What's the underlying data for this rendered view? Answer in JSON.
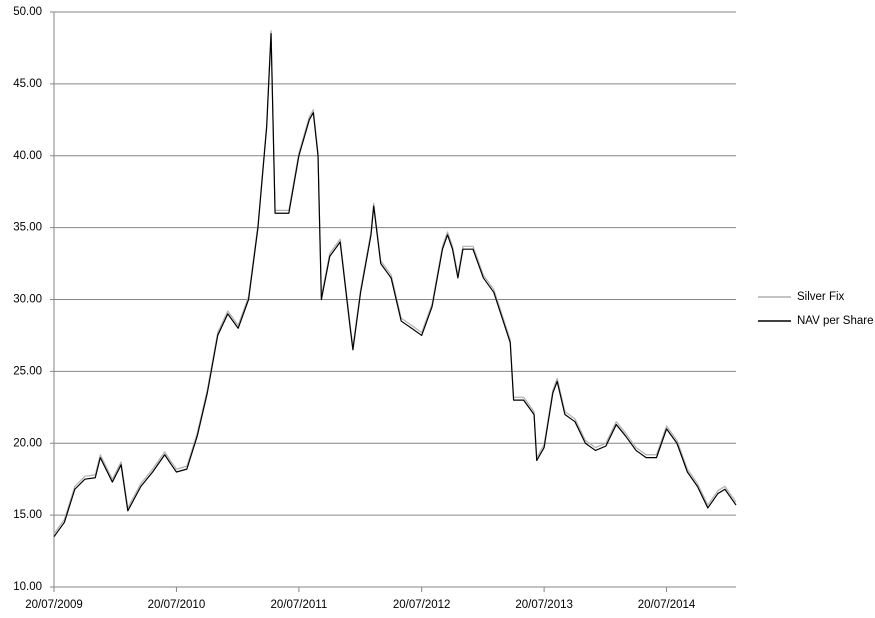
{
  "chart_data": {
    "type": "line",
    "x": [
      "20/07/2009",
      "20/08/2009",
      "20/09/2009",
      "20/10/2009",
      "20/11/2009",
      "05/12/2009",
      "10/01/2010",
      "05/02/2010",
      "25/02/2010",
      "05/04/2010",
      "10/05/2010",
      "15/06/2010",
      "05/07/2010",
      "20/07/2010",
      "20/08/2010",
      "20/09/2010",
      "20/10/2010",
      "20/11/2010",
      "20/12/2010",
      "20/01/2011",
      "20/02/2011",
      "20/03/2011",
      "15/04/2011",
      "28/04/2011",
      "10/05/2011",
      "20/06/2011",
      "20/07/2011",
      "20/08/2011",
      "01/09/2011",
      "15/09/2011",
      "25/09/2011",
      "20/10/2011",
      "20/11/2011",
      "20/12/2011",
      "28/12/2011",
      "20/01/2012",
      "20/02/2012",
      "28/02/2012",
      "20/03/2012",
      "20/04/2012",
      "20/05/2012",
      "20/06/2012",
      "20/07/2012",
      "20/08/2012",
      "20/09/2012",
      "05/10/2012",
      "20/10/2012",
      "05/11/2012",
      "20/11/2012",
      "20/12/2012",
      "20/01/2013",
      "20/02/2013",
      "20/03/2013",
      "10/04/2013",
      "20/04/2013",
      "20/05/2013",
      "20/06/2013",
      "28/06/2013",
      "20/07/2013",
      "15/08/2013",
      "28/08/2013",
      "20/09/2013",
      "20/10/2013",
      "20/11/2013",
      "20/12/2013",
      "20/01/2014",
      "20/02/2014",
      "20/03/2014",
      "20/04/2014",
      "20/05/2014",
      "20/06/2014",
      "20/07/2014",
      "20/08/2014",
      "20/09/2014",
      "20/10/2014",
      "20/11/2014",
      "20/12/2014",
      "10/01/2015",
      "12/02/2015"
    ],
    "series": [
      {
        "name": "Silver Fix",
        "color": "#b0b0b0",
        "values": [
          13.7,
          14.7,
          17.0,
          17.7,
          17.8,
          19.2,
          17.5,
          18.7,
          15.5,
          17.2,
          18.2,
          19.4,
          18.7,
          18.2,
          18.4,
          20.7,
          23.7,
          27.7,
          29.2,
          28.2,
          30.2,
          35.2,
          42.2,
          48.7,
          36.2,
          36.2,
          40.2,
          42.7,
          43.2,
          40.2,
          30.2,
          33.2,
          34.2,
          28.2,
          26.7,
          30.7,
          34.7,
          36.7,
          32.7,
          31.7,
          28.7,
          28.2,
          27.7,
          29.7,
          33.7,
          34.7,
          33.7,
          31.7,
          33.7,
          33.7,
          31.7,
          30.7,
          28.7,
          27.2,
          23.2,
          23.2,
          22.2,
          19.0,
          19.9,
          23.7,
          24.5,
          22.2,
          21.7,
          20.2,
          19.7,
          20.0,
          21.5,
          20.7,
          19.7,
          19.2,
          19.2,
          21.2,
          20.2,
          18.2,
          17.2,
          15.7,
          16.7,
          17.0,
          15.9
        ]
      },
      {
        "name": "NAV per Share",
        "color": "#000000",
        "values": [
          13.5,
          14.5,
          16.8,
          17.5,
          17.6,
          19.0,
          17.3,
          18.5,
          15.3,
          17.0,
          18.0,
          19.2,
          18.5,
          18.0,
          18.2,
          20.5,
          23.5,
          27.5,
          29.0,
          28.0,
          30.0,
          35.0,
          42.0,
          48.5,
          36.0,
          36.0,
          40.0,
          42.5,
          43.0,
          40.0,
          30.0,
          33.0,
          34.0,
          28.0,
          26.5,
          30.5,
          34.5,
          36.5,
          32.5,
          31.5,
          28.5,
          28.0,
          27.5,
          29.5,
          33.5,
          34.5,
          33.5,
          31.5,
          33.5,
          33.5,
          31.5,
          30.5,
          28.5,
          27.0,
          23.0,
          23.0,
          22.0,
          18.8,
          19.7,
          23.5,
          24.3,
          22.0,
          21.5,
          20.0,
          19.5,
          19.8,
          21.3,
          20.5,
          19.5,
          19.0,
          19.0,
          21.0,
          20.0,
          18.0,
          17.0,
          15.5,
          16.5,
          16.8,
          15.7
        ]
      }
    ],
    "xlim": [
      "20/07/2009",
      "12/02/2015"
    ],
    "xticks": [
      "20/07/2009",
      "20/07/2010",
      "20/07/2011",
      "20/07/2012",
      "20/07/2013",
      "20/07/2014"
    ],
    "ylim": [
      10,
      50
    ],
    "yticks": [
      {
        "value": 10,
        "label": "10.00"
      },
      {
        "value": 15,
        "label": "15.00"
      },
      {
        "value": 20,
        "label": "20.00"
      },
      {
        "value": 25,
        "label": "25.00"
      },
      {
        "value": 30,
        "label": "30.00"
      },
      {
        "value": 35,
        "label": "35.00"
      },
      {
        "value": 40,
        "label": "40.00"
      },
      {
        "value": 45,
        "label": "45.00"
      },
      {
        "value": 50,
        "label": "50.00"
      }
    ],
    "grid": true,
    "legend": "right"
  }
}
